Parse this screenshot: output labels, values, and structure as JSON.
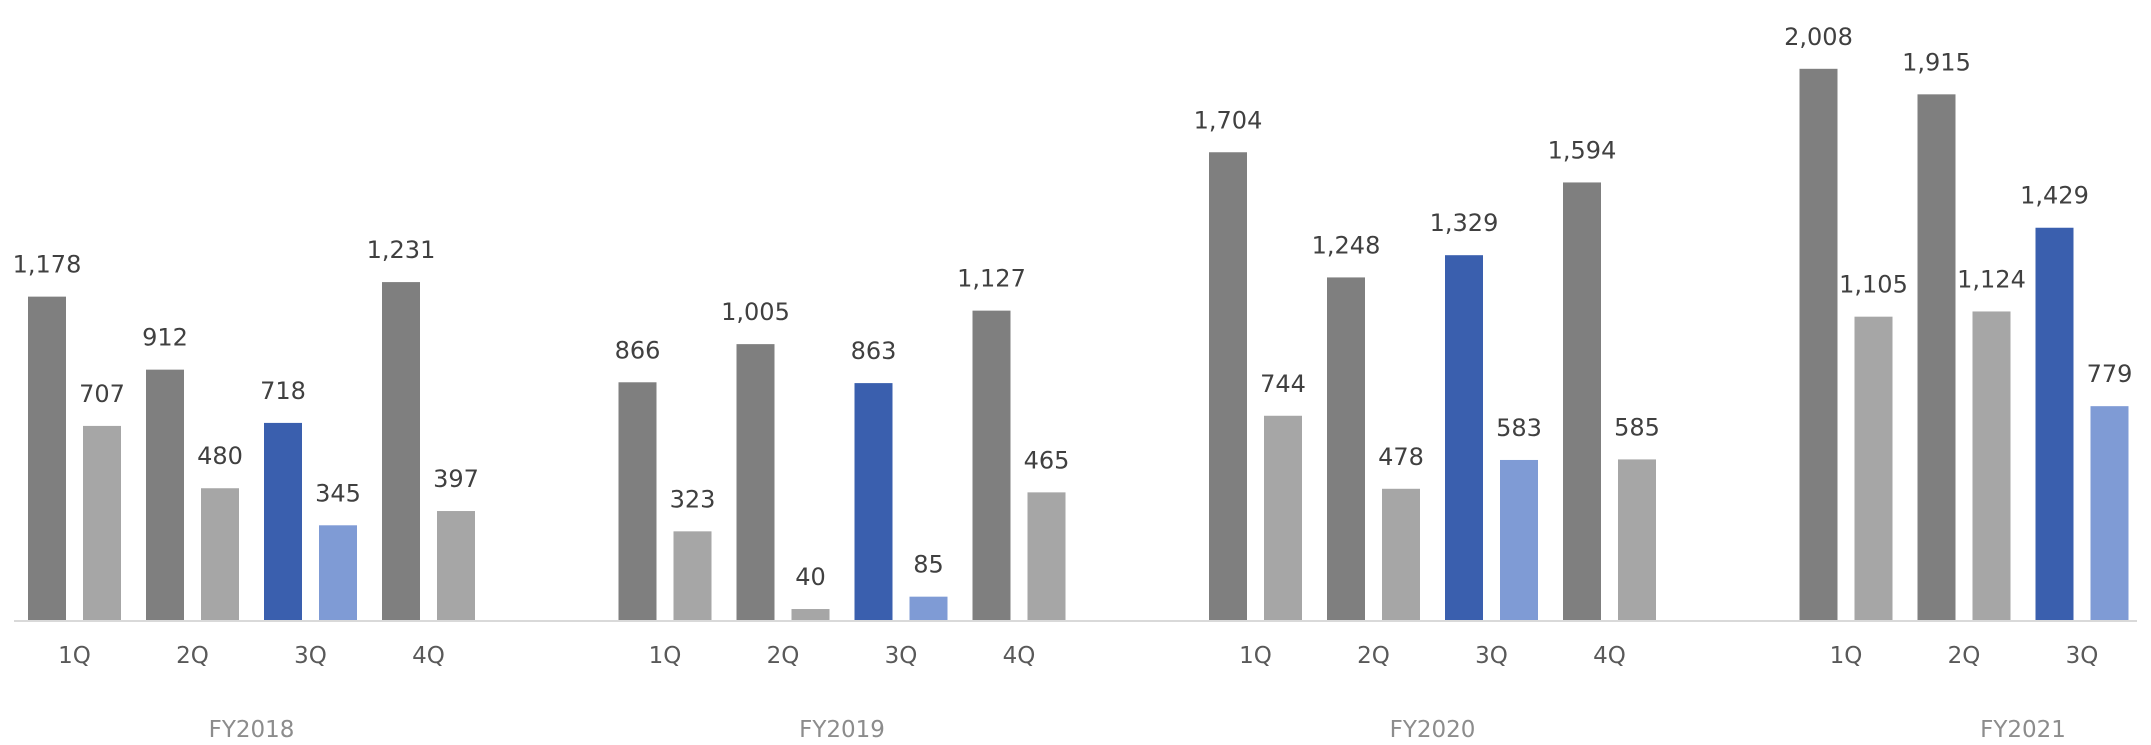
{
  "chart_data": {
    "type": "bar",
    "title": "",
    "xlabel": "",
    "ylabel": "",
    "ylim": [
      0,
      2300
    ],
    "grid": false,
    "legend": "none",
    "colors": {
      "dark_gray": "#7f7f7f",
      "light_gray": "#a6a6a6",
      "dark_blue": "#3a5fae",
      "light_blue": "#7f9bd5",
      "axis": "#d9d9d9"
    },
    "groups": [
      {
        "label": "FY2018",
        "quarters": [
          {
            "label": "1Q",
            "values": [
              1178,
              707
            ],
            "labels": [
              "1,178",
              "707"
            ],
            "highlight": false
          },
          {
            "label": "2Q",
            "values": [
              912,
              480
            ],
            "labels": [
              "912",
              "480"
            ],
            "highlight": false
          },
          {
            "label": "3Q",
            "values": [
              718,
              345
            ],
            "labels": [
              "718",
              "345"
            ],
            "highlight": true
          },
          {
            "label": "4Q",
            "values": [
              1231,
              397
            ],
            "labels": [
              "1,231",
              "397"
            ],
            "highlight": false
          }
        ]
      },
      {
        "label": "FY2019",
        "quarters": [
          {
            "label": "1Q",
            "values": [
              866,
              323
            ],
            "labels": [
              "866",
              "323"
            ],
            "highlight": false
          },
          {
            "label": "2Q",
            "values": [
              1005,
              40
            ],
            "labels": [
              "1,005",
              "40"
            ],
            "highlight": false
          },
          {
            "label": "3Q",
            "values": [
              863,
              85
            ],
            "labels": [
              "863",
              "85"
            ],
            "highlight": true
          },
          {
            "label": "4Q",
            "values": [
              1127,
              465
            ],
            "labels": [
              "1,127",
              "465"
            ],
            "highlight": false
          }
        ]
      },
      {
        "label": "FY2020",
        "quarters": [
          {
            "label": "1Q",
            "values": [
              1704,
              744
            ],
            "labels": [
              "1,704",
              "744"
            ],
            "highlight": false
          },
          {
            "label": "2Q",
            "values": [
              1248,
              478
            ],
            "labels": [
              "1,248",
              "478"
            ],
            "highlight": false
          },
          {
            "label": "3Q",
            "values": [
              1329,
              583
            ],
            "labels": [
              "1,329",
              "583"
            ],
            "highlight": true
          },
          {
            "label": "4Q",
            "values": [
              1594,
              585
            ],
            "labels": [
              "1,594",
              "585"
            ],
            "highlight": false
          }
        ]
      },
      {
        "label": "FY2021",
        "quarters": [
          {
            "label": "1Q",
            "values": [
              2008,
              1105
            ],
            "labels": [
              "2,008",
              "1,105"
            ],
            "highlight": false
          },
          {
            "label": "2Q",
            "values": [
              1915,
              1124
            ],
            "labels": [
              "1,915",
              "1,124"
            ],
            "highlight": false
          },
          {
            "label": "3Q",
            "values": [
              1429,
              779
            ],
            "labels": [
              "1,429",
              "779"
            ],
            "highlight": true
          }
        ]
      }
    ]
  }
}
